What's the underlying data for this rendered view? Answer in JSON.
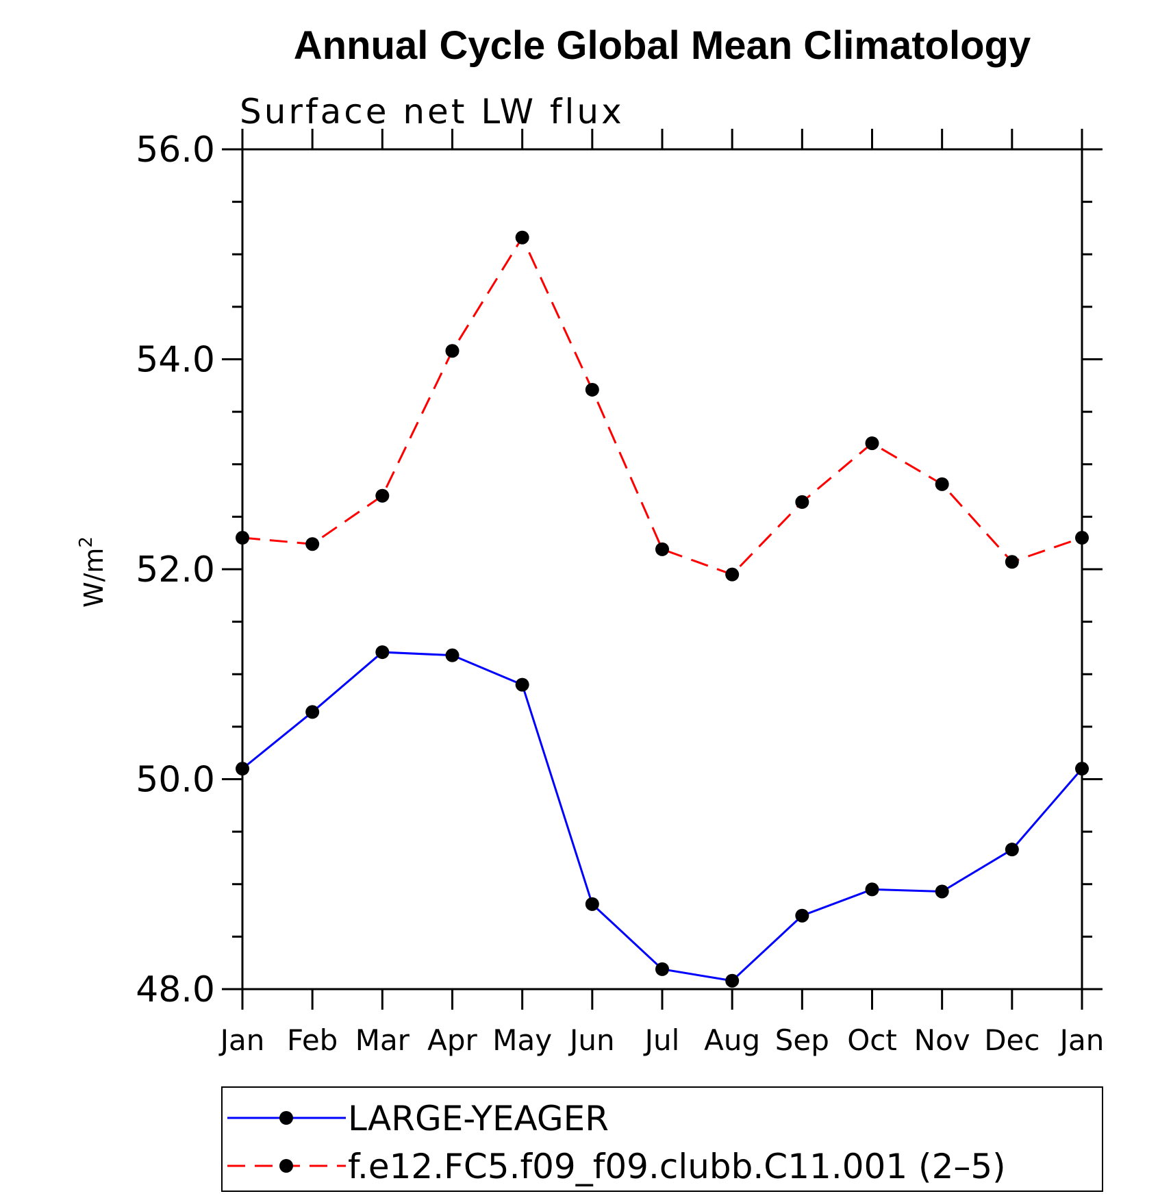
{
  "chart_data": {
    "type": "line",
    "title": "Annual Cycle Global Mean Climatology",
    "subtitle": "Surface net LW flux",
    "xlabel": "",
    "ylabel_base": "W/m",
    "ylabel_sup": "2",
    "categories": [
      "Jan",
      "Feb",
      "Mar",
      "Apr",
      "May",
      "Jun",
      "Jul",
      "Aug",
      "Sep",
      "Oct",
      "Nov",
      "Dec",
      "Jan"
    ],
    "ylim": [
      48.0,
      56.0
    ],
    "yticks": [
      "48.0",
      "50.0",
      "52.0",
      "54.0",
      "56.0"
    ],
    "grid": false,
    "legend_position": "bottom",
    "series": [
      {
        "name": "LARGE-YEAGER",
        "color": "#0000ff",
        "dash": "solid",
        "marker": "filled-circle",
        "values": [
          50.1,
          50.64,
          51.21,
          51.18,
          50.9,
          48.81,
          48.19,
          48.08,
          48.7,
          48.95,
          48.93,
          49.33,
          50.1
        ]
      },
      {
        "name": "f.e12.FC5.f09_f09.clubb.C11.001 (2–5)",
        "color": "#ff0000",
        "dash": "dashed",
        "marker": "filled-circle",
        "values": [
          52.3,
          52.24,
          52.7,
          54.08,
          55.16,
          53.71,
          52.19,
          51.95,
          52.64,
          53.2,
          52.81,
          52.07,
          52.3
        ]
      }
    ]
  }
}
